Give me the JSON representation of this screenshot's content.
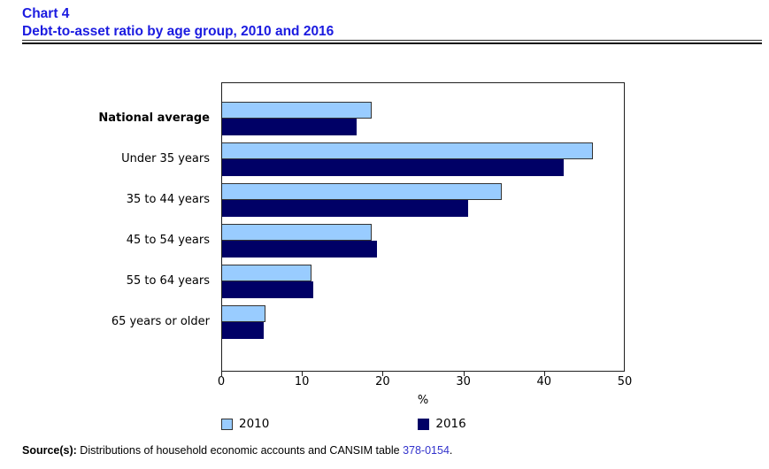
{
  "header": {
    "chart_label": "Chart 4",
    "title": "Debt-to-asset ratio by age group, 2010 and 2016"
  },
  "chart_data": {
    "type": "bar",
    "orientation": "horizontal",
    "title": "Debt-to-asset ratio by age group, 2010 and 2016",
    "categories": [
      "National average",
      "Under 35 years",
      "35 to 44 years",
      "45 to 54 years",
      "55 to 64 years",
      "65 years or older"
    ],
    "series": [
      {
        "name": "2010",
        "color": "#99CCFF",
        "border": "#333333",
        "values": [
          18.6,
          46.2,
          34.8,
          18.6,
          11.1,
          5.4
        ]
      },
      {
        "name": "2016",
        "color": "#000066",
        "border": "#000066",
        "values": [
          16.7,
          42.5,
          30.6,
          19.3,
          11.3,
          5.2
        ]
      }
    ],
    "emphasized_category": "National average",
    "xlabel": "%",
    "xlim": [
      0,
      50
    ],
    "xticks": [
      0,
      10,
      20,
      30,
      40,
      50
    ],
    "grid": false,
    "legend_position": "bottom"
  },
  "source": {
    "prefix": "Source(s):",
    "text": " Distributions of household economic accounts and CANSIM table ",
    "link": "378-0154",
    "suffix": "."
  },
  "colors": {
    "title_blue": "#1b1be0",
    "link_blue": "#3333cc",
    "bar_2010": "#99CCFF",
    "bar_2016": "#000066"
  }
}
